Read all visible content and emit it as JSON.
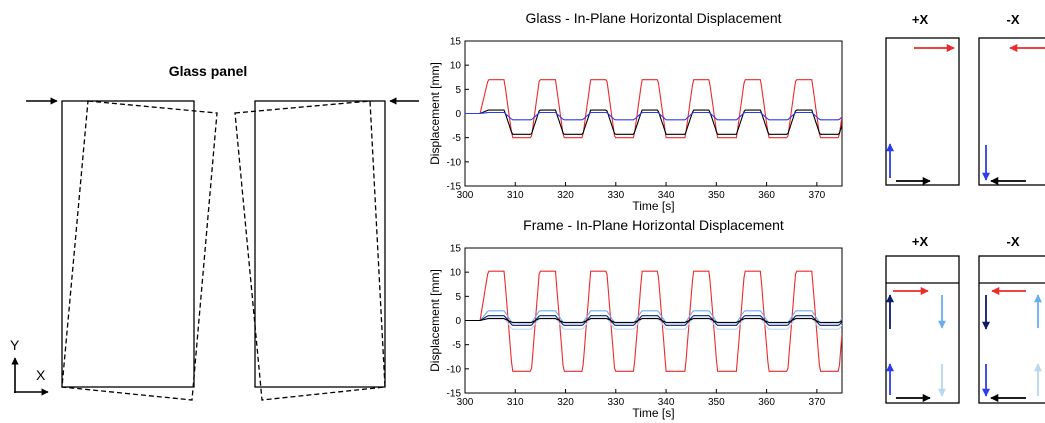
{
  "schematic": {
    "title": "Glass panel",
    "axis_y": "Y",
    "axis_x": "X"
  },
  "diagrams": {
    "glass_plus_title": "+X",
    "glass_minus_title": "-X",
    "frame_plus_title": "+X",
    "frame_minus_title": "-X"
  },
  "colors": {
    "red": "#ee2a2a",
    "black": "#000000",
    "blue": "#2d3cf0",
    "navy": "#0d1a6e",
    "lightblue": "#6aaef0",
    "paleblue": "#b8d7f2"
  },
  "chart_data": [
    {
      "type": "line",
      "title": "Glass - In-Plane Horizontal Displacement",
      "xlabel": "Time [s]",
      "ylabel": "Displacement [mm]",
      "xlim": [
        300,
        375
      ],
      "ylim": [
        -15,
        15
      ],
      "xticks": [
        300,
        310,
        320,
        330,
        340,
        350,
        360,
        370
      ],
      "yticks": [
        -15,
        -10,
        -5,
        0,
        5,
        10,
        15
      ],
      "grid": false,
      "cycle": {
        "start": 303,
        "period": 10.2,
        "count": 8,
        "pos_width": 4.8
      },
      "series": [
        {
          "color": "red",
          "pos": 7,
          "neg": -5
        },
        {
          "color": "black",
          "pos": 0.7,
          "neg": -4.3
        },
        {
          "color": "blue",
          "pos": 0.2,
          "neg": -1.3
        }
      ]
    },
    {
      "type": "line",
      "title": "Frame - In-Plane Horizontal Displacement",
      "xlabel": "Time [s]",
      "ylabel": "Displacement [mm]",
      "xlim": [
        300,
        375
      ],
      "ylim": [
        -15,
        15
      ],
      "xticks": [
        300,
        310,
        320,
        330,
        340,
        350,
        360,
        370
      ],
      "yticks": [
        -15,
        -10,
        -5,
        0,
        5,
        10,
        15
      ],
      "grid": false,
      "cycle": {
        "start": 303,
        "period": 10.2,
        "count": 8,
        "pos_width": 4.8
      },
      "series": [
        {
          "color": "red",
          "pos": 10.2,
          "neg": -10.5
        },
        {
          "color": "lightblue",
          "pos": 2.0,
          "neg": -0.5
        },
        {
          "color": "paleblue",
          "pos": 0.5,
          "neg": -1.8
        },
        {
          "color": "navy",
          "pos": 1.0,
          "neg": -1.0
        },
        {
          "color": "black",
          "pos": 0.4,
          "neg": -0.4
        }
      ]
    }
  ]
}
